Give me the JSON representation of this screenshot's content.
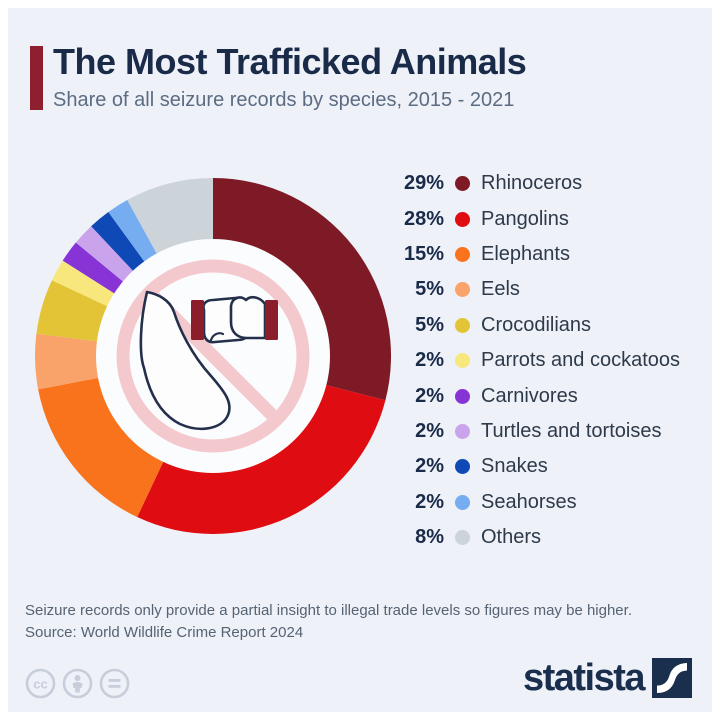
{
  "header": {
    "title": "The Most Trafficked Animals",
    "subtitle": "Share of all seizure records by species, 2015 - 2021",
    "accent_color": "#8E1F2F"
  },
  "chart_data": {
    "type": "pie",
    "subtype": "donut",
    "title": "The Most Trafficked Animals",
    "unit": "%",
    "start_angle": 0,
    "direction": "clockwise",
    "categories": [
      "Rhinoceros",
      "Pangolins",
      "Elephants",
      "Eels",
      "Crocodilians",
      "Parrots and cockatoos",
      "Carnivores",
      "Turtles and tortoises",
      "Snakes",
      "Seahorses",
      "Others"
    ],
    "values": [
      29,
      28,
      15,
      5,
      5,
      2,
      2,
      2,
      2,
      2,
      8
    ],
    "labels": [
      "29%",
      "28%",
      "15%",
      "5%",
      "5%",
      "2%",
      "2%",
      "2%",
      "2%",
      "2%",
      "8%"
    ],
    "colors": [
      "#7D1A26",
      "#DF0C11",
      "#F9731D",
      "#F9A36B",
      "#E3C437",
      "#F8E77D",
      "#8733D6",
      "#C9A4EC",
      "#0E49B5",
      "#76ACF0",
      "#CCD3D9"
    ],
    "legend_position": "right",
    "center_icon": "no-rhino-horn-trade-icon",
    "center_icon_colors": {
      "prohibition_pink": "#F4C9CE",
      "outline_navy": "#24304B",
      "cuff_maroon": "#8C1D2B",
      "hole_white": "#FBFCFD"
    }
  },
  "footer": {
    "note": "Seizure records only provide a partial insight to illegal trade levels so figures may be higher.",
    "source": "Source: World Wildlife Crime Report 2024"
  },
  "branding": {
    "logo_text": "statista",
    "license_icons": [
      "cc-icon",
      "attribution-icon",
      "nd-icon"
    ]
  }
}
